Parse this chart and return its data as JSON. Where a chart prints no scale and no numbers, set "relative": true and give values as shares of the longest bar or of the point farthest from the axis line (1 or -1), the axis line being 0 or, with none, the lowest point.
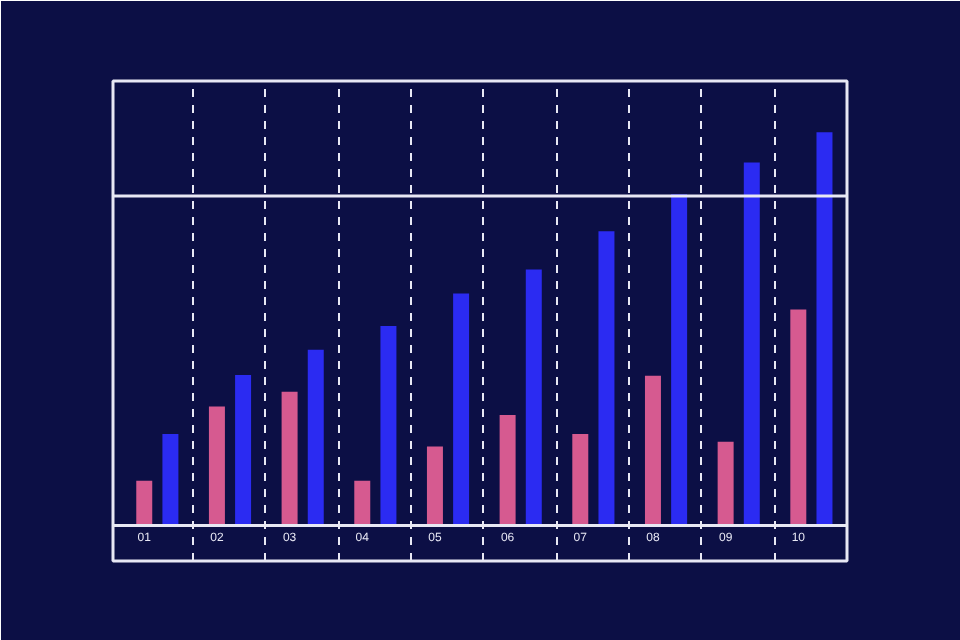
{
  "chart_data": {
    "type": "bar",
    "relative": true,
    "categories": [
      "01",
      "02",
      "03",
      "04",
      "05",
      "06",
      "07",
      "08",
      "09",
      "10"
    ],
    "series": [
      {
        "color": "#d65a90",
        "values": [
          0.114,
          0.303,
          0.34,
          0.114,
          0.201,
          0.281,
          0.233,
          0.381,
          0.213,
          0.549
        ]
      },
      {
        "color": "#2b2bf2",
        "values": [
          0.233,
          0.383,
          0.447,
          0.507,
          0.59,
          0.651,
          0.748,
          0.842,
          0.923,
          1
        ]
      }
    ],
    "grid": "x",
    "line_style": "dashed",
    "ref_lines": [
      {
        "axis": "y",
        "value": 0.838,
        "color": "#e8e8f4",
        "line_style": "solid"
      }
    ]
  }
}
